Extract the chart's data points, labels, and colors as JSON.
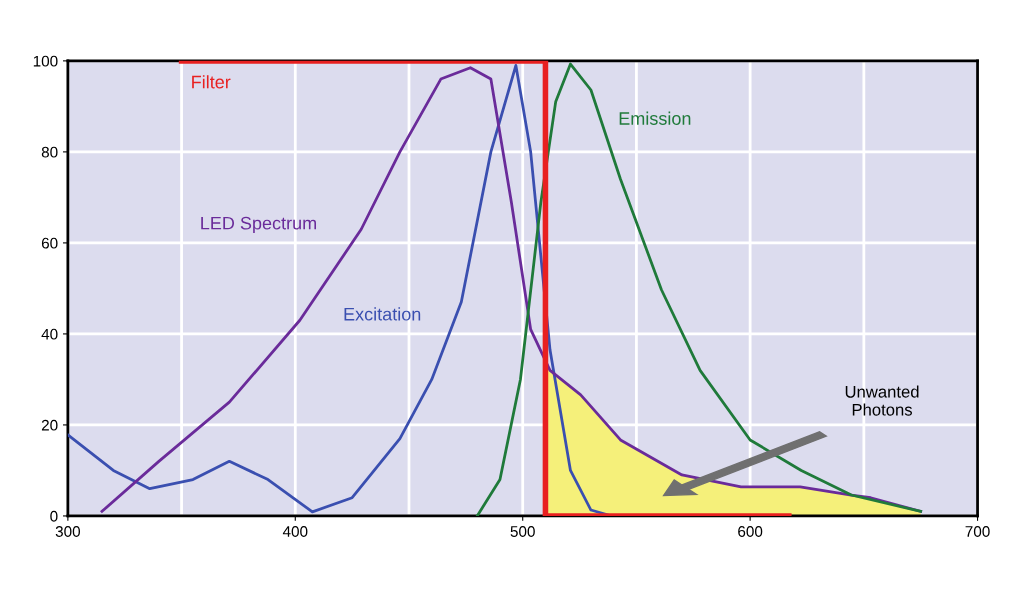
{
  "chart_data": {
    "type": "line",
    "xlim": [
      300,
      700
    ],
    "xticks": [
      300,
      400,
      500,
      600,
      700
    ],
    "ylim": [
      0,
      100
    ],
    "yticks": [
      0,
      20,
      40,
      60,
      80,
      100
    ],
    "grid": true,
    "legend": false,
    "series": [
      {
        "type": "area",
        "color": "#f5f07a",
        "x": [
          510,
          512,
          525.5,
          543,
          570,
          596,
          622,
          644.5,
          653,
          675
        ],
        "values": [
          33,
          32,
          26.6,
          16.7,
          9,
          6.4,
          6.4,
          4.6,
          4,
          1
        ]
      },
      {
        "name": "Excitation",
        "color": "#3a4fb0",
        "x": [
          300,
          320,
          336,
          355,
          371,
          388,
          407.5,
          425,
          446,
          460,
          473,
          486,
          497,
          503.5,
          512,
          521,
          530,
          539
        ],
        "values": [
          17.8,
          10,
          6,
          8,
          12,
          8,
          0.9,
          4,
          17,
          30,
          47,
          80,
          99,
          80,
          36.5,
          10,
          1.3,
          0
        ]
      },
      {
        "name": "LED Spectrum",
        "color": "#6a2b9a",
        "x": [
          315,
          340,
          371,
          402,
          429,
          446,
          464,
          477,
          486,
          495,
          503.5,
          512,
          525.5,
          543,
          570,
          596,
          622,
          644.5,
          653,
          675
        ],
        "values": [
          1,
          12,
          25,
          43,
          63,
          80,
          96,
          98.5,
          96,
          69,
          41,
          32,
          26.6,
          16.7,
          9,
          6.4,
          6.4,
          4.6,
          4,
          1
        ]
      },
      {
        "name": "Emission",
        "color": "#1f7a3a",
        "x": [
          480,
          490,
          499,
          508,
          514.5,
          521,
          530,
          543,
          561,
          578,
          600,
          622.5,
          644.5,
          675
        ],
        "values": [
          0,
          8,
          30,
          69,
          91,
          99.3,
          93.6,
          74,
          49.7,
          32,
          16.7,
          10,
          4.6,
          1
        ]
      },
      {
        "name": "Filter",
        "color": "#e82020",
        "x": [
          350,
          510,
          510,
          617
        ],
        "values": [
          100,
          100,
          0,
          0
        ]
      }
    ],
    "annotations": [
      "Unwanted\nPhotons"
    ]
  }
}
